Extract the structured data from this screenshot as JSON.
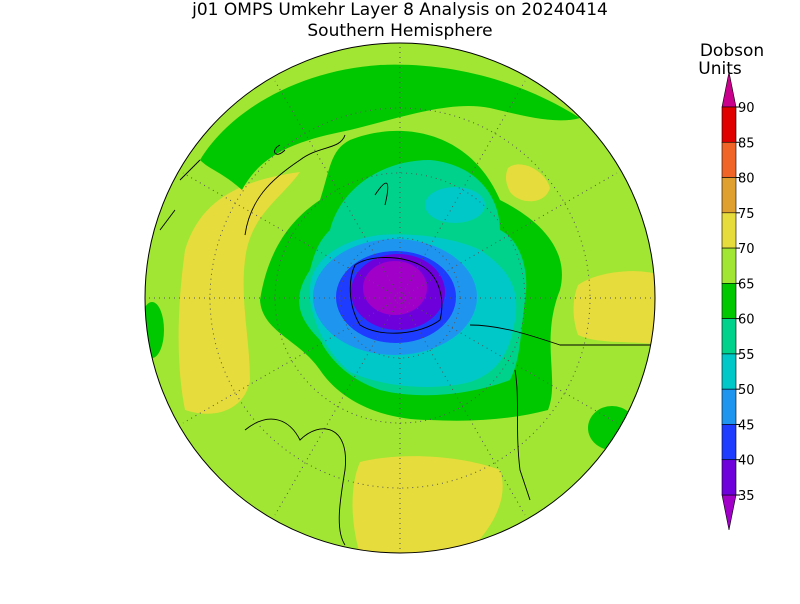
{
  "title": "j01 OMPS Umkehr Layer 8 Analysis on 20240414",
  "subtitle": "Southern Hemisphere",
  "colorbar": {
    "label_lines": [
      "Dobson",
      "Units"
    ],
    "ticks": [
      90,
      85,
      80,
      75,
      70,
      65,
      60,
      55,
      50,
      45,
      40,
      35
    ],
    "colors": [
      "#e00000",
      "#f06428",
      "#e0a030",
      "#e6dc3c",
      "#a0e632",
      "#00c800",
      "#00d28c",
      "#00c8c8",
      "#1e96f0",
      "#1e3cff",
      "#6e00dc"
    ],
    "over_color": "#c8008c",
    "under_color": "#a000c8"
  }
}
